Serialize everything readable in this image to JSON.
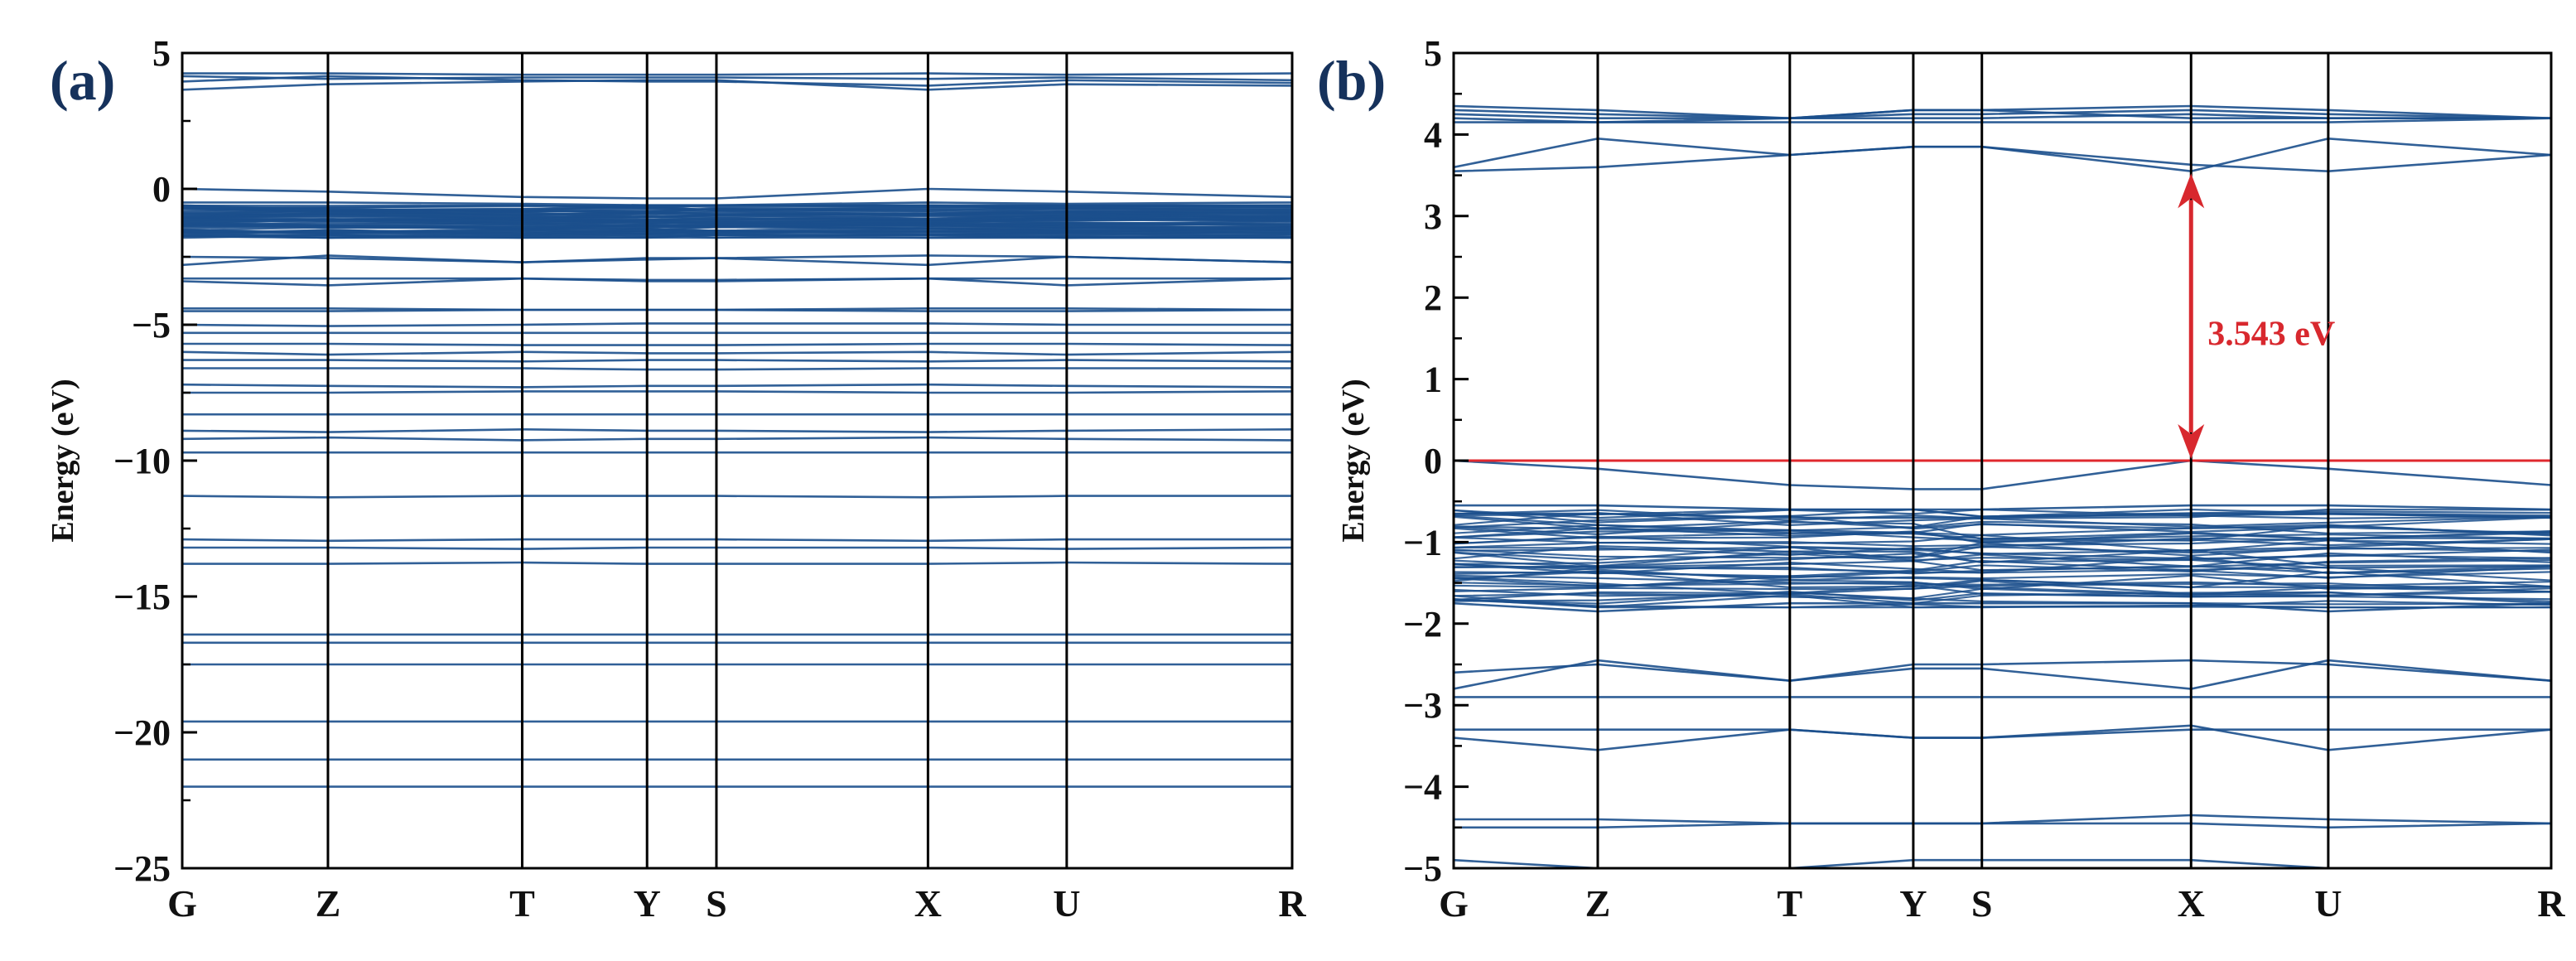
{
  "colors": {
    "band": "#1b4f8c",
    "fermi": "#e0282e",
    "gap_arrow": "#d8282e",
    "frame": "#000000"
  },
  "kpath": {
    "labels": [
      "G",
      "Z",
      "T",
      "Y",
      "S",
      "X",
      "U",
      "R"
    ],
    "positions": [
      0,
      0.1313,
      0.3063,
      0.4188,
      0.4813,
      0.6719,
      0.7969,
      1.0
    ]
  },
  "chart_data": [
    {
      "type": "line",
      "panel_label": "(a)",
      "ylabel": "Energy (eV)",
      "ylim": [
        -25,
        5
      ],
      "yticks": [
        5,
        0,
        -5,
        -10,
        -15,
        -20,
        -25
      ],
      "ytick_labels": [
        "5",
        "0",
        "−5",
        "−10",
        "−15",
        "−20",
        "−25"
      ],
      "grid": false,
      "dense_band_regions": [
        [
          -1.8,
          -0.6
        ]
      ],
      "bands": [
        [
          4.25,
          4.25,
          4.2,
          4.2,
          4.2,
          4.25,
          4.2,
          4.25
        ],
        [
          4.15,
          4.05,
          4.1,
          4.1,
          4.1,
          4.05,
          4.1,
          4.0
        ],
        [
          3.95,
          4.15,
          4.0,
          3.95,
          3.95,
          3.8,
          4.0,
          3.9
        ],
        [
          3.65,
          3.85,
          3.95,
          4.0,
          4.0,
          3.65,
          3.85,
          3.8
        ],
        [
          0.0,
          -0.1,
          -0.3,
          -0.35,
          -0.35,
          0.0,
          -0.1,
          -0.3
        ],
        [
          -0.5,
          -0.5,
          -0.55,
          -0.6,
          -0.6,
          -0.5,
          -0.55,
          -0.5
        ],
        [
          -2.5,
          -2.55,
          -2.7,
          -2.6,
          -2.55,
          -2.45,
          -2.5,
          -2.7
        ],
        [
          -2.8,
          -2.45,
          -2.7,
          -2.55,
          -2.55,
          -2.8,
          -2.5,
          -2.7
        ],
        [
          -3.3,
          -3.3,
          -3.3,
          -3.35,
          -3.35,
          -3.3,
          -3.3,
          -3.3
        ],
        [
          -3.4,
          -3.55,
          -3.3,
          -3.4,
          -3.4,
          -3.3,
          -3.55,
          -3.3
        ],
        [
          -4.4,
          -4.4,
          -4.45,
          -4.45,
          -4.45,
          -4.4,
          -4.4,
          -4.45
        ],
        [
          -4.5,
          -4.5,
          -4.45,
          -4.45,
          -4.45,
          -4.5,
          -4.5,
          -4.45
        ],
        [
          -5.0,
          -5.05,
          -5.0,
          -4.95,
          -4.95,
          -4.95,
          -5.0,
          -5.0
        ],
        [
          -5.3,
          -5.3,
          -5.3,
          -5.3,
          -5.3,
          -5.3,
          -5.3,
          -5.3
        ],
        [
          -5.7,
          -5.7,
          -5.75,
          -5.75,
          -5.75,
          -5.7,
          -5.7,
          -5.75
        ],
        [
          -6.0,
          -6.1,
          -6.0,
          -6.05,
          -6.05,
          -6.0,
          -6.1,
          -6.0
        ],
        [
          -6.3,
          -6.3,
          -6.35,
          -6.3,
          -6.3,
          -6.35,
          -6.3,
          -6.35
        ],
        [
          -6.6,
          -6.6,
          -6.6,
          -6.65,
          -6.65,
          -6.6,
          -6.6,
          -6.6
        ],
        [
          -7.2,
          -7.25,
          -7.3,
          -7.25,
          -7.25,
          -7.2,
          -7.25,
          -7.3
        ],
        [
          -7.5,
          -7.5,
          -7.45,
          -7.45,
          -7.45,
          -7.5,
          -7.5,
          -7.45
        ],
        [
          -8.3,
          -8.3,
          -8.3,
          -8.3,
          -8.3,
          -8.3,
          -8.3,
          -8.3
        ],
        [
          -8.9,
          -8.95,
          -8.85,
          -8.9,
          -8.9,
          -8.95,
          -8.9,
          -8.85
        ],
        [
          -9.2,
          -9.15,
          -9.25,
          -9.2,
          -9.2,
          -9.15,
          -9.2,
          -9.25
        ],
        [
          -9.7,
          -9.7,
          -9.7,
          -9.7,
          -9.7,
          -9.7,
          -9.7,
          -9.7
        ],
        [
          -11.3,
          -11.35,
          -11.3,
          -11.3,
          -11.3,
          -11.35,
          -11.3,
          -11.3
        ],
        [
          -12.9,
          -12.95,
          -12.9,
          -12.9,
          -12.9,
          -12.95,
          -12.9,
          -12.9
        ],
        [
          -13.2,
          -13.2,
          -13.25,
          -13.2,
          -13.2,
          -13.2,
          -13.25,
          -13.2
        ],
        [
          -13.8,
          -13.8,
          -13.75,
          -13.8,
          -13.8,
          -13.8,
          -13.75,
          -13.8
        ],
        [
          -16.4,
          -16.4,
          -16.4,
          -16.4,
          -16.4,
          -16.4,
          -16.4,
          -16.4
        ],
        [
          -16.7,
          -16.7,
          -16.7,
          -16.7,
          -16.7,
          -16.7,
          -16.7,
          -16.7
        ],
        [
          -17.5,
          -17.5,
          -17.5,
          -17.5,
          -17.5,
          -17.5,
          -17.5,
          -17.5
        ],
        [
          -19.6,
          -19.6,
          -19.6,
          -19.6,
          -19.6,
          -19.6,
          -19.6,
          -19.6
        ],
        [
          -21.0,
          -21.0,
          -21.0,
          -21.0,
          -21.0,
          -21.0,
          -21.0,
          -21.0
        ],
        [
          -22.0,
          -22.0,
          -22.0,
          -22.0,
          -22.0,
          -22.0,
          -22.0,
          -22.0
        ]
      ]
    },
    {
      "type": "line",
      "panel_label": "(b)",
      "ylabel": "Energy (eV)",
      "ylim": [
        -5,
        5
      ],
      "yticks": [
        5,
        4,
        3,
        2,
        1,
        0,
        -1,
        -2,
        -3,
        -4,
        -5
      ],
      "ytick_labels": [
        "5",
        "4",
        "3",
        "2",
        "1",
        "0",
        "−1",
        "−2",
        "−3",
        "−4",
        "−5"
      ],
      "grid": false,
      "fermi_level": 0,
      "band_gap": {
        "label": "3.543 eV",
        "k": 0.6719,
        "from": 0.0,
        "to": 3.543
      },
      "dense_band_regions": [
        [
          -1.8,
          -0.6
        ]
      ],
      "bands": [
        [
          4.35,
          4.3,
          4.2,
          4.3,
          4.3,
          4.35,
          4.3,
          4.2
        ],
        [
          4.3,
          4.25,
          4.2,
          4.25,
          4.25,
          4.3,
          4.25,
          4.2
        ],
        [
          4.25,
          4.2,
          4.2,
          4.2,
          4.2,
          4.25,
          4.2,
          4.2
        ],
        [
          4.2,
          4.15,
          4.15,
          4.15,
          4.15,
          4.15,
          4.15,
          4.2
        ],
        [
          4.15,
          4.15,
          4.2,
          4.3,
          4.3,
          4.2,
          4.2,
          4.2
        ],
        [
          3.6,
          3.95,
          3.75,
          3.85,
          3.85,
          3.55,
          3.95,
          3.75
        ],
        [
          3.55,
          3.6,
          3.75,
          3.85,
          3.85,
          3.63,
          3.55,
          3.75
        ],
        [
          0.0,
          -0.1,
          -0.3,
          -0.35,
          -0.35,
          0.0,
          -0.1,
          -0.3
        ],
        [
          -0.55,
          -0.55,
          -0.6,
          -0.6,
          -0.6,
          -0.55,
          -0.55,
          -0.6
        ],
        [
          -0.65,
          -0.65,
          -0.7,
          -0.7,
          -0.7,
          -0.65,
          -0.65,
          -0.7
        ],
        [
          -1.75,
          -1.85,
          -1.75,
          -1.75,
          -1.75,
          -1.75,
          -1.85,
          -1.75
        ],
        [
          -2.8,
          -2.45,
          -2.7,
          -2.55,
          -2.55,
          -2.8,
          -2.45,
          -2.7
        ],
        [
          -2.6,
          -2.5,
          -2.7,
          -2.5,
          -2.5,
          -2.45,
          -2.5,
          -2.7
        ],
        [
          -2.9,
          -2.9,
          -2.9,
          -2.9,
          -2.9,
          -2.9,
          -2.9,
          -2.9
        ],
        [
          -3.3,
          -3.3,
          -3.3,
          -3.4,
          -3.4,
          -3.3,
          -3.3,
          -3.3
        ],
        [
          -3.4,
          -3.55,
          -3.3,
          -3.4,
          -3.4,
          -3.25,
          -3.55,
          -3.3
        ],
        [
          -4.4,
          -4.4,
          -4.45,
          -4.45,
          -4.45,
          -4.35,
          -4.4,
          -4.45
        ],
        [
          -4.5,
          -4.5,
          -4.45,
          -4.45,
          -4.45,
          -4.45,
          -4.5,
          -4.45
        ],
        [
          -4.9,
          -5.0,
          -5.0,
          -4.9,
          -4.9,
          -4.9,
          -5.0,
          -5.0
        ]
      ]
    }
  ]
}
